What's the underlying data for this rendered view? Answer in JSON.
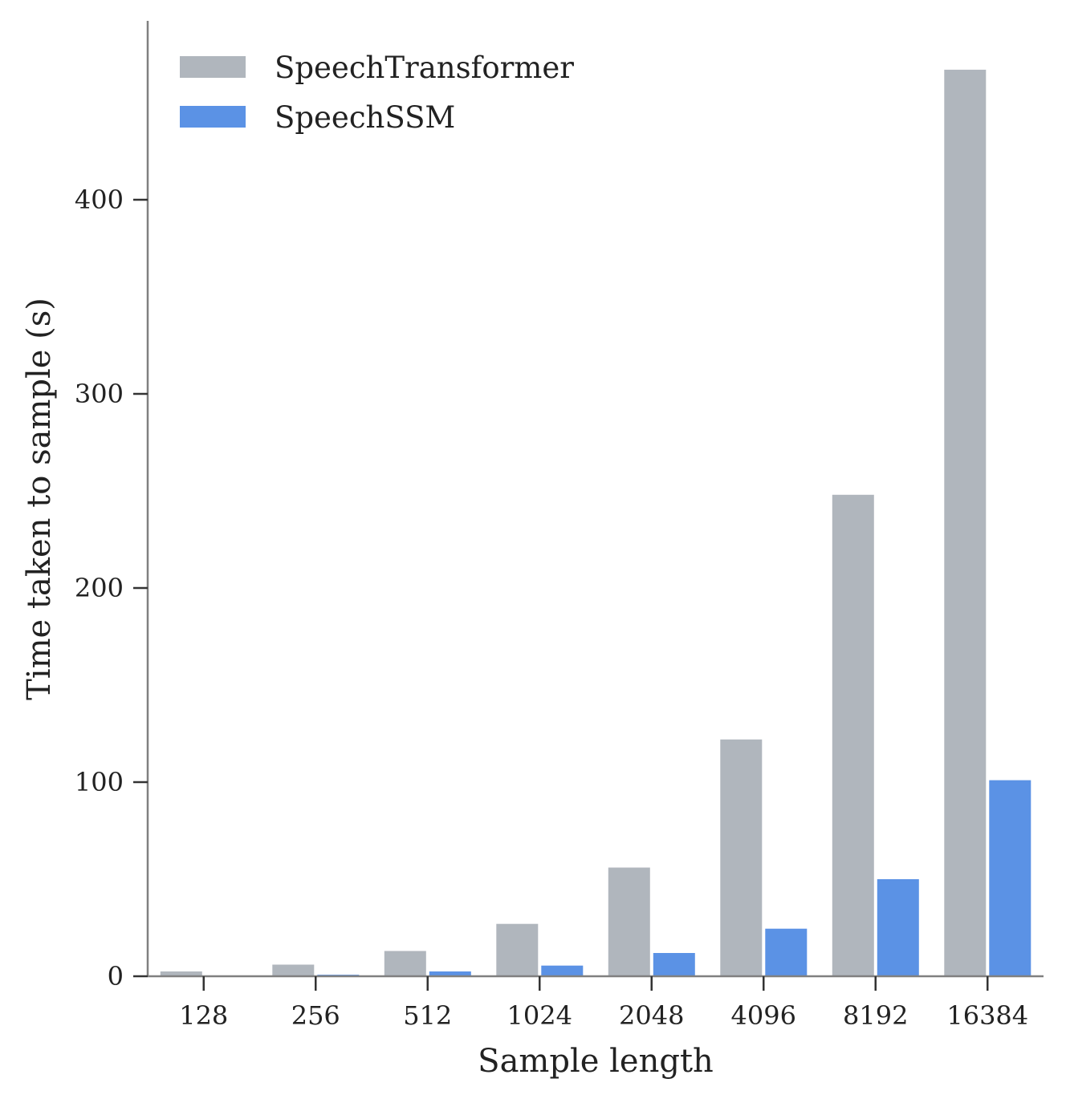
{
  "chart_data": {
    "type": "bar",
    "xlabel": "Sample length",
    "ylabel": "Time taken to sample (s)",
    "categories": [
      "128",
      "256",
      "512",
      "1024",
      "2048",
      "4096",
      "8192",
      "16384"
    ],
    "series": [
      {
        "name": "SpeechTransformer",
        "color": "#b0b6bd",
        "values": [
          2.5,
          6,
          13,
          27,
          56,
          122,
          248,
          467
        ]
      },
      {
        "name": "SpeechSSM",
        "color": "#5b92e5",
        "values": [
          0.2,
          0.8,
          2.5,
          5.5,
          12,
          24.5,
          50,
          101
        ]
      }
    ],
    "y_ticks": [
      0,
      100,
      200,
      300,
      400
    ],
    "ylim": [
      0,
      490
    ],
    "grid": false,
    "legend_position": "top-left"
  }
}
